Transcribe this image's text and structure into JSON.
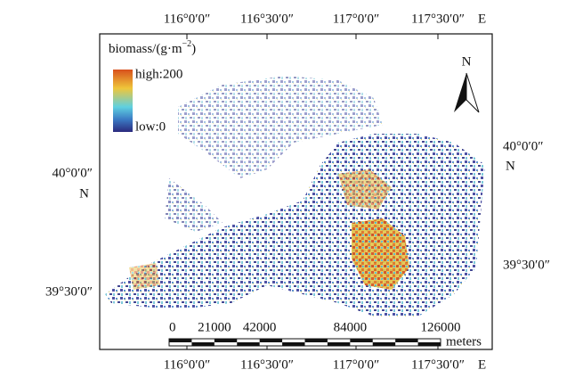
{
  "map": {
    "top_labels": [
      "116°0′0″",
      "116°30′0″",
      "117°0′0″",
      "117°30′0″"
    ],
    "bottom_labels": [
      "116°0′0″",
      "116°30′0″",
      "117°0′0″",
      "117°30′0″"
    ],
    "east_label_top": "E",
    "east_label_bottom": "E",
    "left_labels": [
      "40°0′0″",
      "N",
      "39°30′0″"
    ],
    "right_labels": [
      "40°0′0″",
      "N",
      "39°30′0″"
    ],
    "north_arrow": "N",
    "legend": {
      "title": "biomass/(g·m",
      "title_superscript": "−2",
      "title_suffix": ")",
      "high": "high:200",
      "low": "low:0"
    },
    "scale_bar": {
      "ticks": [
        0,
        21000,
        42000,
        84000,
        126000
      ],
      "unit": "meters"
    }
  }
}
